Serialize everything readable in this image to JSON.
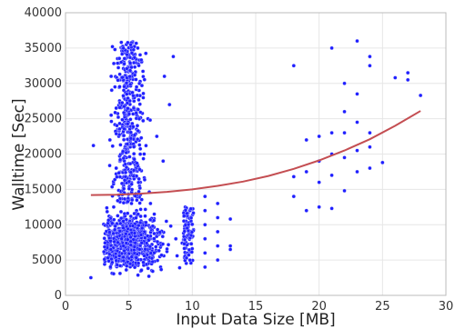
{
  "chart_data": {
    "type": "scatter",
    "title": "",
    "xlabel": "Input Data Size [MB]",
    "ylabel": "Walltime [Sec]",
    "xlim": [
      0,
      30
    ],
    "ylim": [
      0,
      40000
    ],
    "x_ticks": [
      "0",
      "5",
      "10",
      "15",
      "20",
      "25",
      "30"
    ],
    "y_ticks": [
      "0",
      "5000",
      "10000",
      "15000",
      "20000",
      "25000",
      "30000",
      "35000",
      "40000"
    ],
    "grid": true,
    "legend": "none",
    "point_color": "#1f1fff",
    "fit_color": "#c44e52",
    "series": [
      {
        "kind": "points",
        "points": [
          [
            2.0,
            2500
          ],
          [
            2.2,
            21200
          ],
          [
            3.3,
            7000
          ],
          [
            3.4,
            10500
          ],
          [
            3.5,
            8200
          ],
          [
            3.5,
            22000
          ],
          [
            3.6,
            25500
          ],
          [
            3.6,
            31000
          ],
          [
            3.7,
            35200
          ],
          [
            3.8,
            6000
          ],
          [
            3.8,
            12500
          ],
          [
            3.9,
            29500
          ],
          [
            4.0,
            4200
          ],
          [
            4.0,
            18000
          ],
          [
            4.0,
            26500
          ],
          [
            4.1,
            33500
          ],
          [
            4.2,
            9500
          ],
          [
            4.2,
            22500
          ],
          [
            4.3,
            3100
          ],
          [
            4.3,
            30500
          ],
          [
            4.4,
            14500
          ],
          [
            4.4,
            35800
          ],
          [
            4.5,
            7200
          ],
          [
            4.5,
            24000
          ],
          [
            4.6,
            11000
          ],
          [
            4.6,
            28000
          ],
          [
            4.7,
            5200
          ],
          [
            4.7,
            32000
          ],
          [
            4.8,
            19500
          ],
          [
            4.8,
            35500
          ],
          [
            4.9,
            8800
          ],
          [
            4.9,
            26000
          ],
          [
            5.0,
            13500
          ],
          [
            5.0,
            34000
          ],
          [
            5.1,
            6500
          ],
          [
            5.1,
            21000
          ],
          [
            5.2,
            30000
          ],
          [
            5.3,
            10000
          ],
          [
            5.3,
            35900
          ],
          [
            5.4,
            17000
          ],
          [
            5.4,
            27500
          ],
          [
            5.5,
            4500
          ],
          [
            5.5,
            31500
          ],
          [
            5.6,
            12000
          ],
          [
            5.6,
            23500
          ],
          [
            5.7,
            35000
          ],
          [
            5.8,
            7800
          ],
          [
            5.8,
            29000
          ],
          [
            5.9,
            16000
          ],
          [
            6.0,
            3600
          ],
          [
            6.0,
            33000
          ],
          [
            6.2,
            20000
          ],
          [
            6.3,
            9000
          ],
          [
            6.5,
            5500
          ],
          [
            6.5,
            25000
          ],
          [
            6.7,
            13000
          ],
          [
            6.8,
            3500
          ],
          [
            7.0,
            11500
          ],
          [
            7.2,
            22500
          ],
          [
            7.3,
            7500
          ],
          [
            7.5,
            4000
          ],
          [
            7.7,
            19000
          ],
          [
            7.8,
            31000
          ],
          [
            8.0,
            6200
          ],
          [
            8.2,
            27000
          ],
          [
            8.3,
            9800
          ],
          [
            8.5,
            33800
          ],
          [
            8.7,
            8000
          ],
          [
            8.8,
            5600
          ],
          [
            9.0,
            3900
          ],
          [
            9.2,
            7400
          ],
          [
            9.5,
            10500
          ],
          [
            9.8,
            12000
          ],
          [
            11.0,
            4000
          ],
          [
            11.0,
            6000
          ],
          [
            11.0,
            8000
          ],
          [
            11.0,
            10000
          ],
          [
            11.0,
            12000
          ],
          [
            11.0,
            14000
          ],
          [
            12.0,
            5000
          ],
          [
            12.0,
            7000
          ],
          [
            12.0,
            9000
          ],
          [
            12.0,
            11000
          ],
          [
            12.0,
            13000
          ],
          [
            13.0,
            6500
          ],
          [
            13.0,
            7000
          ],
          [
            13.0,
            10800
          ],
          [
            18.0,
            14000
          ],
          [
            18.0,
            16800
          ],
          [
            18.0,
            32500
          ],
          [
            19.0,
            12000
          ],
          [
            19.0,
            17500
          ],
          [
            19.0,
            22000
          ],
          [
            20.0,
            12500
          ],
          [
            20.0,
            16000
          ],
          [
            20.0,
            19000
          ],
          [
            20.0,
            22500
          ],
          [
            21.0,
            12300
          ],
          [
            21.0,
            17000
          ],
          [
            21.0,
            20000
          ],
          [
            21.0,
            23000
          ],
          [
            21.0,
            35000
          ],
          [
            22.0,
            14800
          ],
          [
            22.0,
            19500
          ],
          [
            22.0,
            23000
          ],
          [
            22.0,
            26000
          ],
          [
            22.0,
            30000
          ],
          [
            23.0,
            17500
          ],
          [
            23.0,
            20500
          ],
          [
            23.0,
            24500
          ],
          [
            23.0,
            28500
          ],
          [
            23.0,
            36000
          ],
          [
            24.0,
            18000
          ],
          [
            24.0,
            21000
          ],
          [
            24.0,
            23000
          ],
          [
            24.0,
            32500
          ],
          [
            24.0,
            33800
          ],
          [
            25.0,
            18800
          ],
          [
            26.0,
            30800
          ],
          [
            27.0,
            31500
          ],
          [
            27.0,
            30500
          ],
          [
            28.0,
            28300
          ]
        ]
      },
      {
        "kind": "fit",
        "points": [
          [
            2,
            14200
          ],
          [
            4,
            14250
          ],
          [
            6,
            14400
          ],
          [
            8,
            14650
          ],
          [
            10,
            15000
          ],
          [
            12,
            15500
          ],
          [
            14,
            16100
          ],
          [
            16,
            16900
          ],
          [
            18,
            17900
          ],
          [
            20,
            19100
          ],
          [
            22,
            20500
          ],
          [
            24,
            22100
          ],
          [
            26,
            24000
          ],
          [
            28,
            26100
          ]
        ]
      }
    ]
  }
}
